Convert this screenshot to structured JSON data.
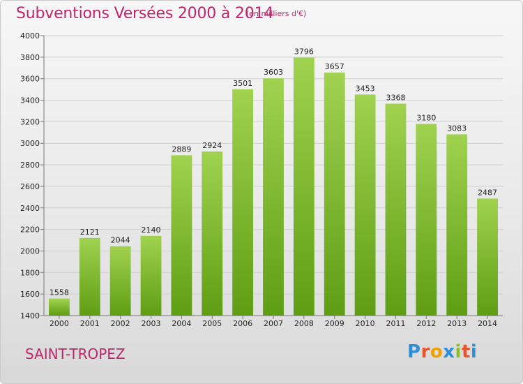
{
  "title": "Subventions Versées 2000 à 2014",
  "subtitle": "(en milliers d'€)",
  "city": "SAINT-TROPEZ",
  "logo": {
    "p": "P",
    "r": "r",
    "o": "o",
    "x": "x",
    "i1": "i",
    "t": "t",
    "i2": "i"
  },
  "colors": {
    "bar_top": "#a0d250",
    "bar_bottom": "#5e9e14",
    "text_accent": "#c0256b"
  },
  "chart_data": {
    "type": "bar",
    "categories": [
      "2000",
      "2001",
      "2002",
      "2003",
      "2004",
      "2005",
      "2006",
      "2007",
      "2008",
      "2009",
      "2010",
      "2011",
      "2012",
      "2013",
      "2014"
    ],
    "values": [
      1558,
      2121,
      2044,
      2140,
      2889,
      2924,
      3501,
      3603,
      3796,
      3657,
      3453,
      3368,
      3180,
      3083,
      2487
    ],
    "title": "Subventions Versées 2000 à 2014",
    "subtitle": "(en milliers d'€)",
    "xlabel": "",
    "ylabel": "",
    "ylim": [
      1400,
      4000
    ],
    "yticks": [
      1400,
      1600,
      1800,
      2000,
      2200,
      2400,
      2600,
      2800,
      3000,
      3200,
      3400,
      3600,
      3800,
      4000
    ],
    "grid": "horizontal",
    "legend": "none"
  }
}
